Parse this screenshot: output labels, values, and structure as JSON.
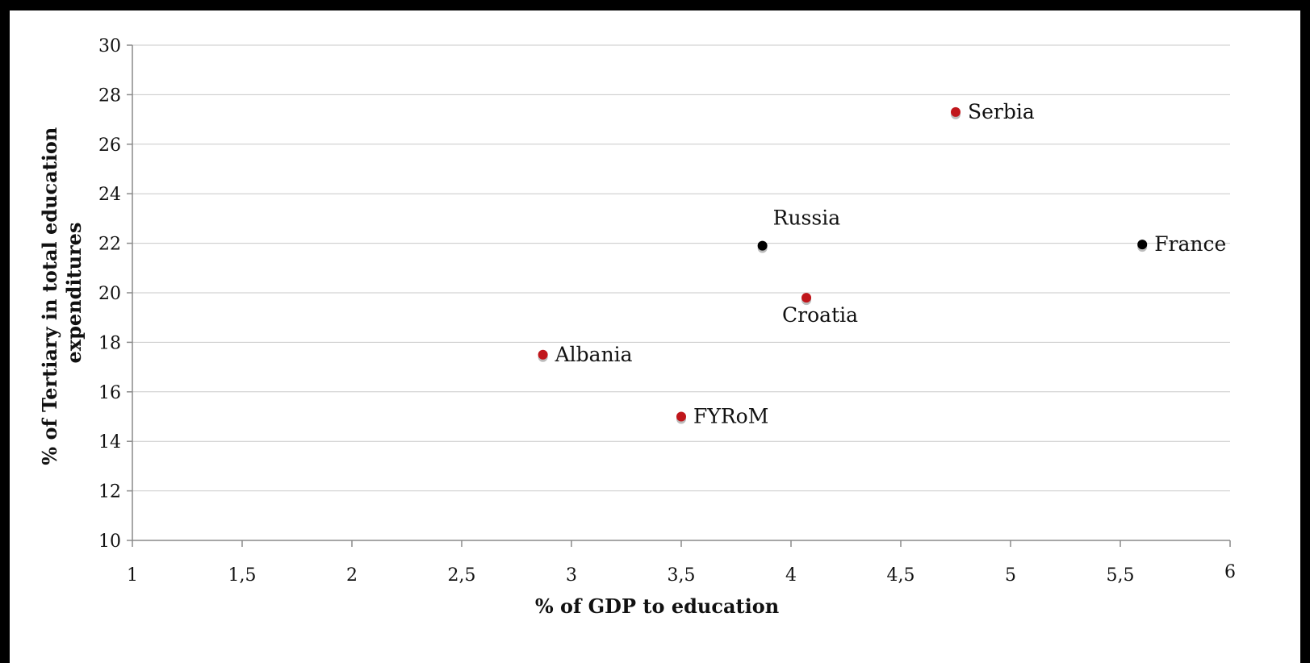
{
  "chart_data": {
    "type": "scatter",
    "xlabel": "% of GDP to education",
    "ylabel_lines": [
      "% of Tertiary in total education",
      "expenditures"
    ],
    "xlim": [
      1,
      6
    ],
    "ylim": [
      10,
      30
    ],
    "x_ticks": [
      "1",
      "1,5",
      "2",
      "2,5",
      "3",
      "3,5",
      "4",
      "4,5",
      "5",
      "5,5",
      "6"
    ],
    "y_ticks": [
      "10",
      "12",
      "14",
      "16",
      "18",
      "20",
      "22",
      "24",
      "26",
      "28",
      "30"
    ],
    "grid": "horizontal",
    "points": [
      {
        "label": "Serbia",
        "x": 4.75,
        "y": 27.3,
        "color": "#c0161b",
        "label_pos": "right"
      },
      {
        "label": "Russia",
        "x": 3.87,
        "y": 21.9,
        "color": "#000000",
        "label_pos": "above-right"
      },
      {
        "label": "France",
        "x": 5.6,
        "y": 21.95,
        "color": "#000000",
        "label_pos": "right"
      },
      {
        "label": "Croatia",
        "x": 4.07,
        "y": 19.8,
        "color": "#c0161b",
        "label_pos": "below"
      },
      {
        "label": "Albania",
        "x": 2.87,
        "y": 17.5,
        "color": "#c0161b",
        "label_pos": "right"
      },
      {
        "label": "FYRoM",
        "x": 3.5,
        "y": 15.0,
        "color": "#c0161b",
        "label_pos": "right"
      }
    ]
  }
}
